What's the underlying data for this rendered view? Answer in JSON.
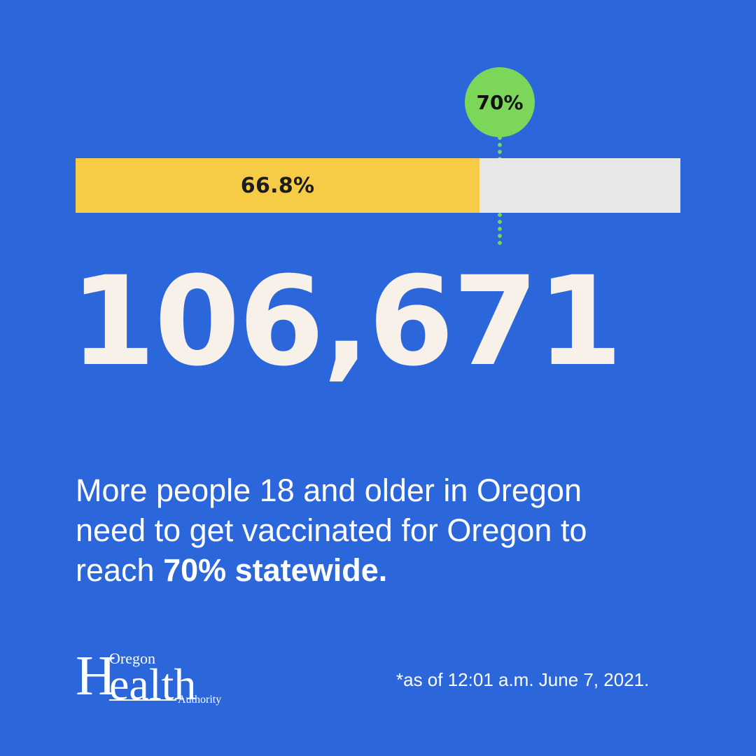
{
  "progress": {
    "current_percent": 66.8,
    "current_label": "66.8%",
    "target_percent": 70,
    "target_label": "70%",
    "colors": {
      "fill": "#f6cb46",
      "track": "#e7e7e6",
      "target": "#7bd65a"
    }
  },
  "headline_number": "106,671",
  "message": {
    "lead": "More people 18 and older in Oregon need to get vaccinated for Oregon to reach ",
    "emphasis": "70% statewide."
  },
  "logo": {
    "line_top": "Oregon",
    "initial": "H",
    "main_rest": "ealth",
    "line_bottom": "Authority"
  },
  "footnote": "*as of 12:01 a.m. June 7, 2021.",
  "theme": {
    "background": "#2b67db",
    "number_color": "#f8f1ea"
  }
}
